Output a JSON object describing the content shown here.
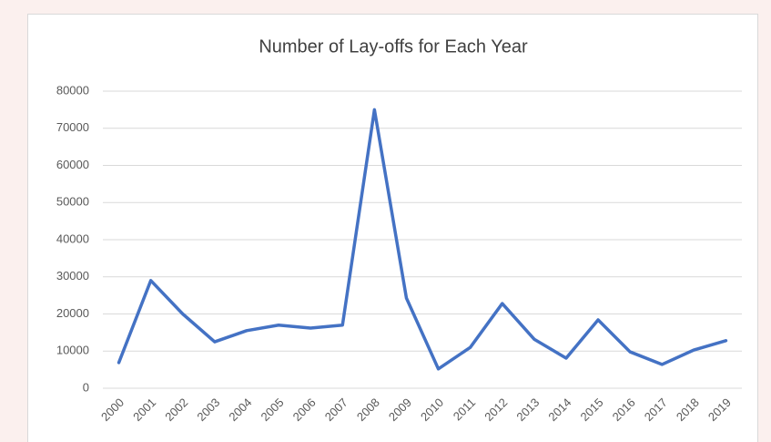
{
  "chart_data": {
    "type": "line",
    "title": "Number of Lay-offs for Each Year",
    "categories": [
      "2000",
      "2001",
      "2002",
      "2003",
      "2004",
      "2005",
      "2006",
      "2007",
      "2008",
      "2009",
      "2010",
      "2011",
      "2012",
      "2013",
      "2014",
      "2015",
      "2016",
      "2017",
      "2018",
      "2019"
    ],
    "series": [
      {
        "name": "Lay-offs",
        "color": "#4472c4",
        "values": [
          6900,
          29000,
          20000,
          12500,
          15500,
          17000,
          16200,
          17000,
          75000,
          24300,
          5200,
          11000,
          22800,
          13200,
          8100,
          18400,
          9800,
          6400,
          10300,
          12800
        ]
      }
    ],
    "ylim": [
      0,
      80000
    ],
    "yticks": [
      0,
      10000,
      20000,
      30000,
      40000,
      50000,
      60000,
      70000,
      80000
    ],
    "grid": true
  }
}
